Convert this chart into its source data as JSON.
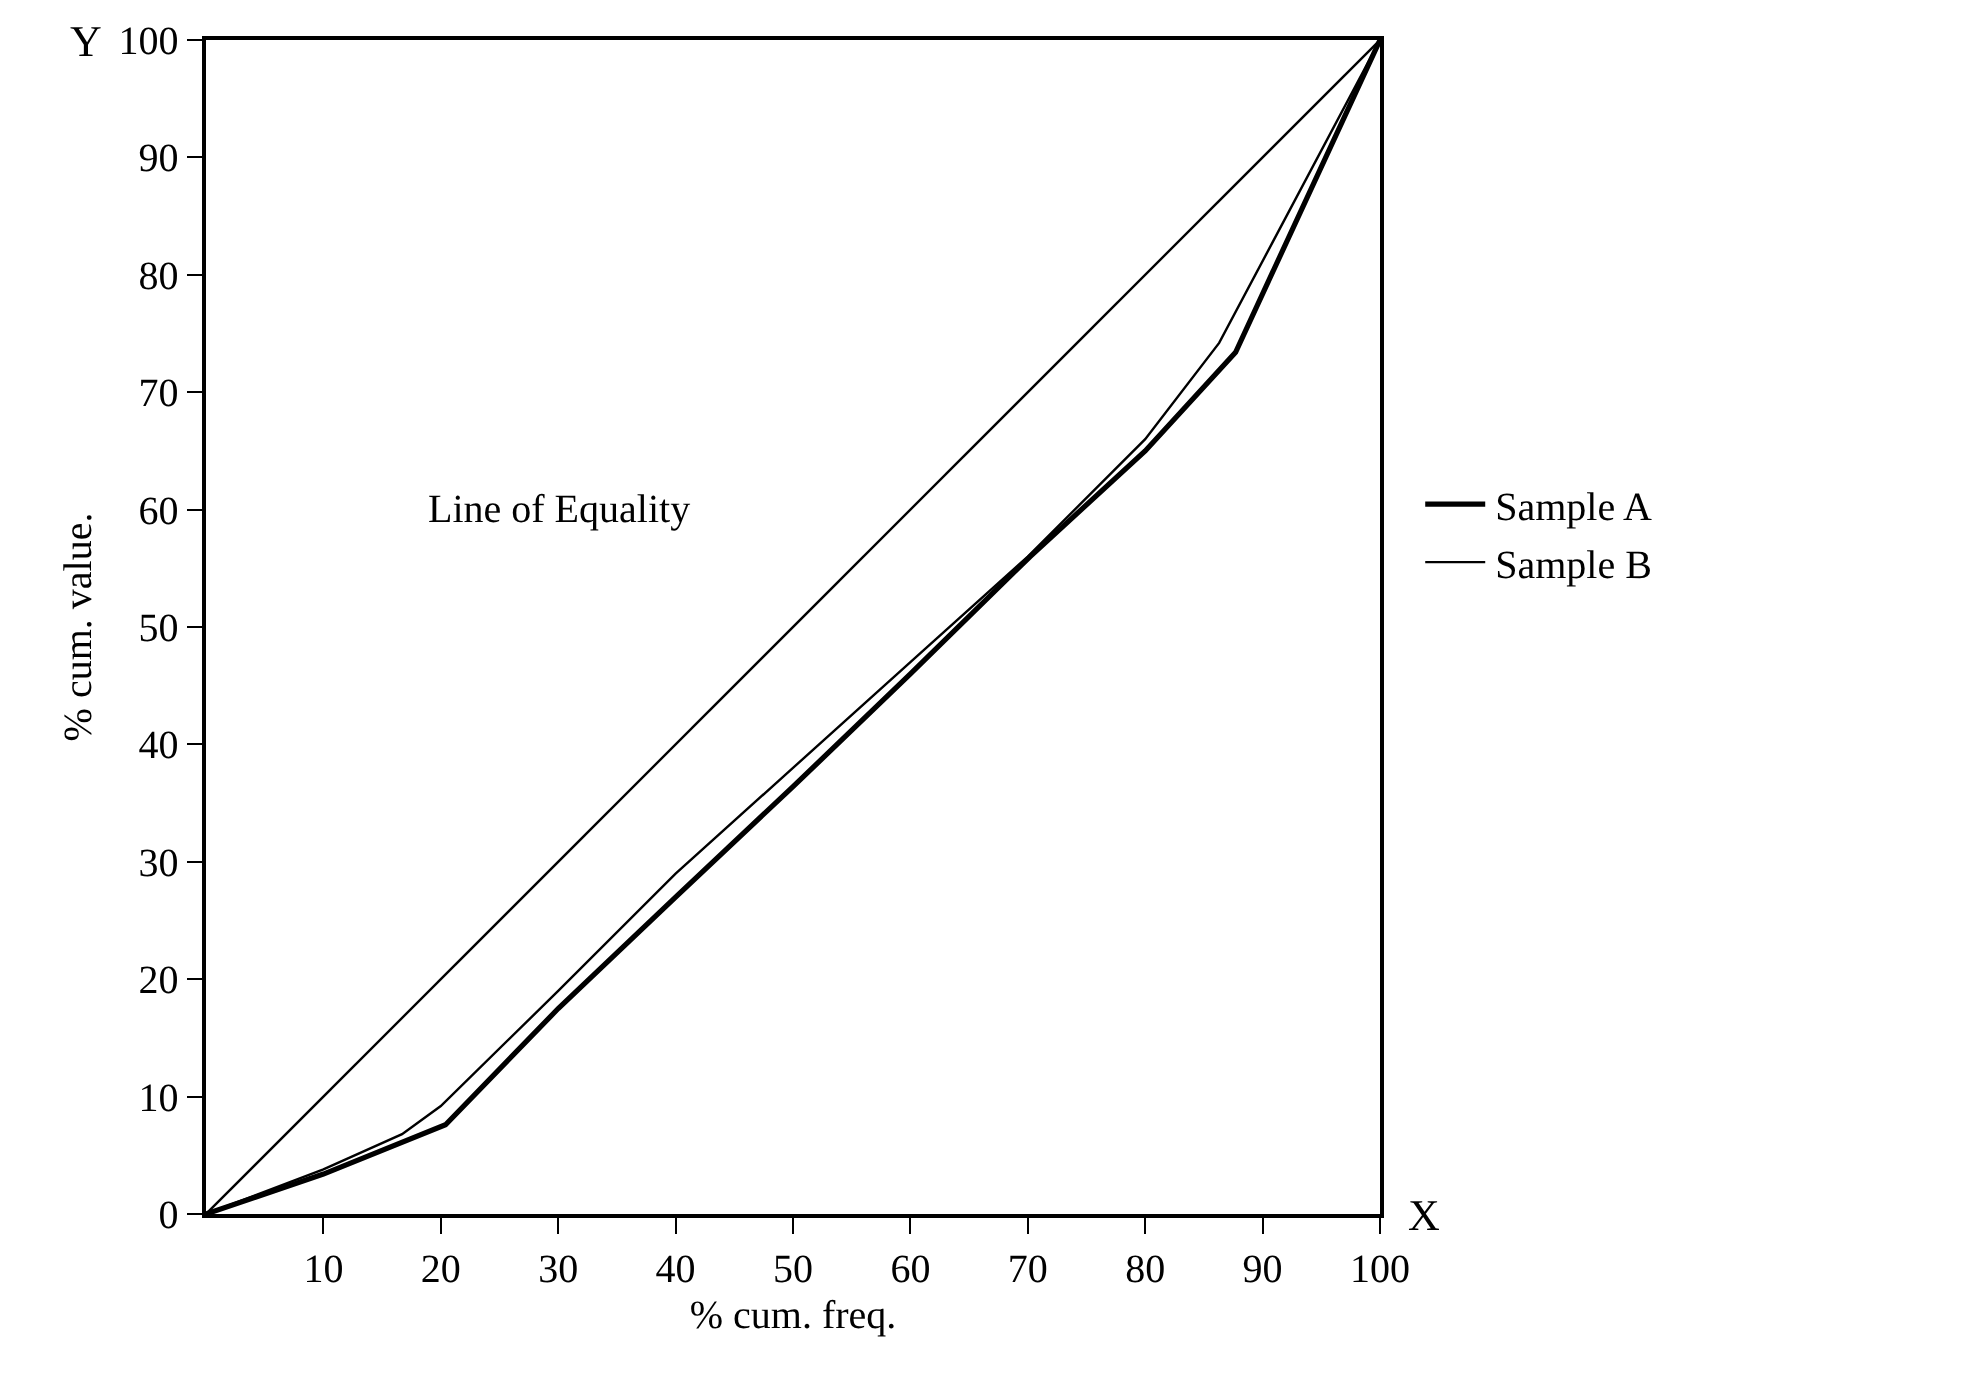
{
  "chart_data": {
    "type": "line",
    "xlabel": "% cum. freq.",
    "ylabel": "% cum. value.",
    "annotations": [
      "Line of Equality",
      "Y",
      "X"
    ],
    "series": [
      {
        "name": "Sample A",
        "color": "#000000",
        "x": [
          0,
          10,
          20.4,
          30,
          40,
          50,
          60,
          70.2,
          80,
          87.7,
          100
        ],
        "values": [
          0,
          3.4,
          7.6,
          17.5,
          27,
          36.4,
          46,
          56,
          65,
          73.4,
          100
        ]
      },
      {
        "name": "Sample B",
        "color": "#000000",
        "x": [
          0,
          10,
          16.7,
          20,
          30,
          40,
          50,
          60,
          70,
          80,
          86.3,
          100
        ],
        "values": [
          0,
          3.8,
          6.8,
          9.2,
          19,
          29,
          38,
          47,
          56,
          66,
          74.2,
          100
        ]
      },
      {
        "color": "#000000",
        "x": [
          0,
          100
        ],
        "values": [
          0,
          100
        ]
      }
    ],
    "xlim": [
      0,
      100
    ],
    "ylim": [
      0,
      100
    ],
    "xticks": [
      10,
      20,
      30,
      40,
      50,
      60,
      70,
      80,
      90,
      100
    ],
    "yticks": [
      0,
      10,
      20,
      30,
      40,
      50,
      60,
      70,
      80,
      90,
      100
    ],
    "legend": "right"
  }
}
